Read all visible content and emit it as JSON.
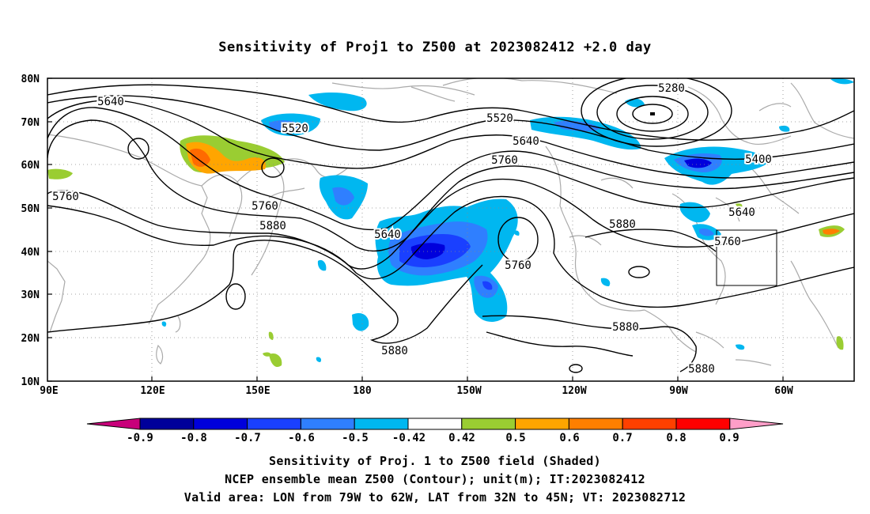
{
  "title": "Sensitivity of Proj1 to Z500 at 2023082412 +2.0 day",
  "lat_labels": [
    "80N",
    "70N",
    "60N",
    "50N",
    "40N",
    "30N",
    "20N",
    "10N"
  ],
  "lon_labels": [
    "90E",
    "120E",
    "150E",
    "180",
    "150W",
    "120W",
    "90W",
    "60W"
  ],
  "contour_labels": [
    "5280",
    "5400",
    "5520",
    "5520",
    "5640",
    "5640",
    "5640",
    "5640",
    "5760",
    "5760",
    "5760",
    "5760",
    "5760",
    "5880",
    "5880",
    "5880",
    "5880",
    "5880"
  ],
  "colorbar": {
    "labels": [
      "-0.9",
      "-0.8",
      "-0.7",
      "-0.6",
      "-0.5",
      "-0.42",
      "0.42",
      "0.5",
      "0.6",
      "0.7",
      "0.8",
      "0.9"
    ],
    "colors": [
      "#c8007a",
      "#00009a",
      "#0000dc",
      "#1a40ff",
      "#2f7fff",
      "#00b7f0",
      "#ffffff",
      "#9acd32",
      "#ffa500",
      "#ff7f00",
      "#ff4000",
      "#ff0000",
      "#ff9ec8"
    ]
  },
  "valid_area": {
    "lon": [
      "79W",
      "62W"
    ],
    "lat": [
      "32N",
      "45N"
    ]
  },
  "footer": {
    "line1": "Sensitivity of Proj. 1 to Z500 field (Shaded)",
    "line2": "NCEP ensemble mean Z500 (Contour); unit(m); IT:2023082412",
    "line3": "Valid area: LON from 79W to 62W, LAT from 32N to 45N; VT: 2023082712"
  }
}
